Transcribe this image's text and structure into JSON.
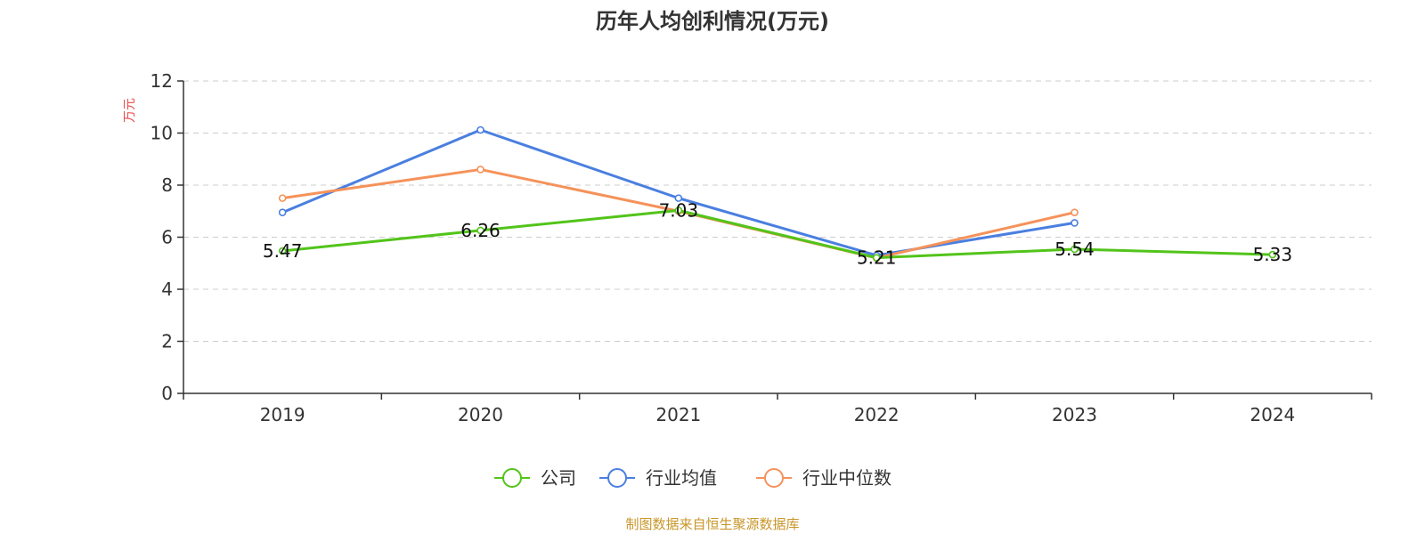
{
  "chart_data": {
    "type": "line",
    "title": "历年人均创利情况(万元)",
    "ylabel": "万元",
    "xlabel": "",
    "categories": [
      "2019",
      "2020",
      "2021",
      "2022",
      "2023",
      "2024"
    ],
    "ylim": [
      0,
      12
    ],
    "yticks": [
      0,
      2,
      4,
      6,
      8,
      10,
      12
    ],
    "grid": true,
    "legend_position": "bottom-center",
    "series": [
      {
        "name": "公司",
        "color": "#52c41a",
        "values": [
          5.47,
          6.26,
          7.03,
          5.21,
          5.54,
          5.33
        ],
        "show_labels": true,
        "labels": [
          "5.47",
          "6.26",
          "7.03",
          "5.21",
          "5.54",
          "5.33"
        ]
      },
      {
        "name": "行业均值",
        "color": "#4a7fe0",
        "values": [
          6.95,
          10.12,
          7.5,
          5.3,
          6.55,
          null
        ],
        "show_labels": false
      },
      {
        "name": "行业中位数",
        "color": "#f5925a",
        "values": [
          7.5,
          8.6,
          7.0,
          5.2,
          6.95,
          null
        ],
        "show_labels": false
      }
    ]
  },
  "footer": {
    "source": "制图数据来自恒生聚源数据库"
  }
}
